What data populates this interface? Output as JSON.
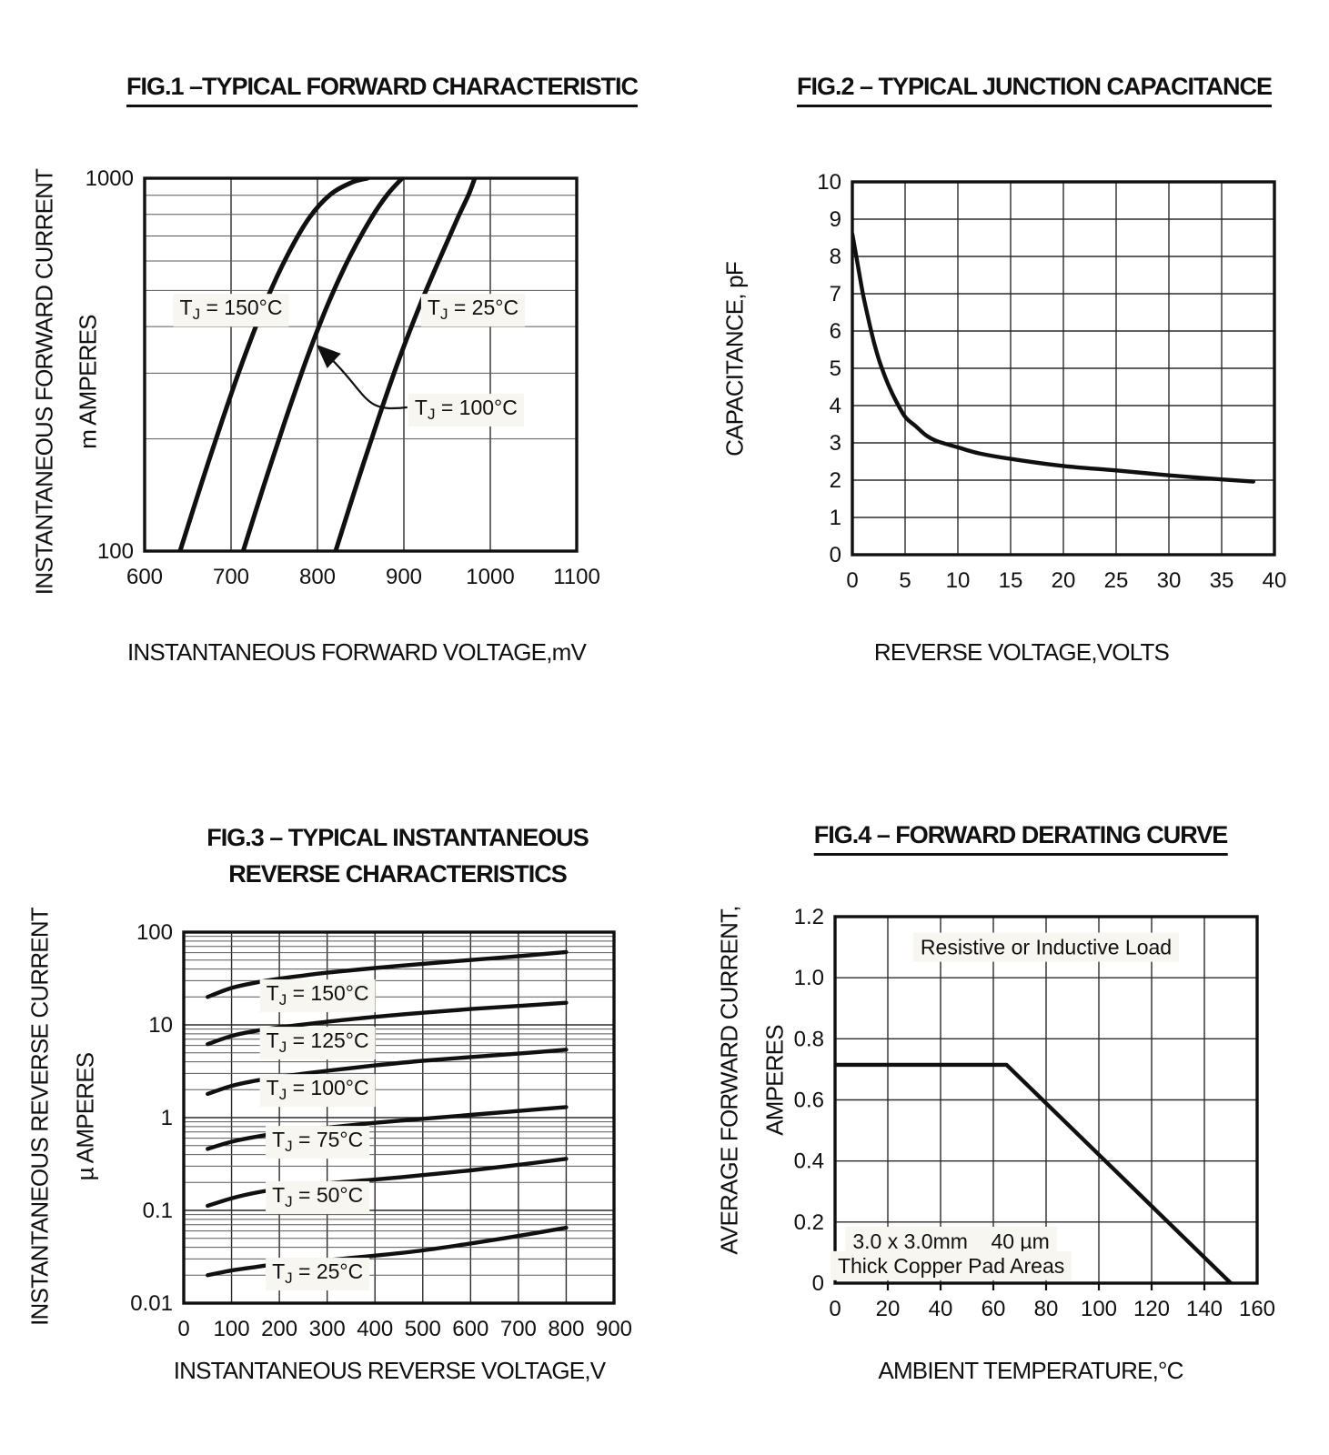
{
  "page": {
    "background": "#ffffff",
    "ink": "#101010",
    "grid_color": "#2b2b2b",
    "minor_grid_color": "#585858",
    "label_box_color": "#f7f6f0"
  },
  "chart_data": [
    {
      "type": "line",
      "title": "FIG.1 –TYPICAL FORWARD CHARACTERISTIC",
      "xlabel": "INSTANTANEOUS FORWARD VOLTAGE,mV",
      "ylabel": "INSTANTANEOUS FORWARD CURRENT, m AMPERES",
      "ylabel_lines": [
        "INSTANTANEOUS FORWARD CURRENT",
        "m AMPERES"
      ],
      "xlim": [
        600,
        1100
      ],
      "ylim": [
        100,
        1000
      ],
      "yscale": "log",
      "grid": true,
      "legend": "none",
      "xticks": [
        600,
        700,
        800,
        900,
        1000,
        1100
      ],
      "xtick_labels": [
        "600",
        "700",
        "800",
        "900",
        "1000",
        "1100"
      ],
      "yticks": [
        100,
        1000
      ],
      "ytick_labels": [
        "100",
        "1000"
      ],
      "series": [
        {
          "name": "TJ = 150°C",
          "points": [
            [
              641,
              100
            ],
            [
              665,
              150
            ],
            [
              690,
              225
            ],
            [
              715,
              330
            ],
            [
              740,
              465
            ],
            [
              765,
              620
            ],
            [
              790,
              780
            ],
            [
              815,
              905
            ],
            [
              840,
              975
            ],
            [
              858,
              1000
            ]
          ]
        },
        {
          "name": "TJ = 100°C",
          "points": [
            [
              714,
              100
            ],
            [
              738,
              150
            ],
            [
              763,
              225
            ],
            [
              788,
              330
            ],
            [
              813,
              465
            ],
            [
              838,
              620
            ],
            [
              862,
              780
            ],
            [
              881,
              905
            ],
            [
              898,
              1000
            ]
          ]
        },
        {
          "name": "TJ = 25°C",
          "points": [
            [
              821,
              100
            ],
            [
              845,
              150
            ],
            [
              870,
              225
            ],
            [
              895,
              330
            ],
            [
              920,
              465
            ],
            [
              943,
              620
            ],
            [
              962,
              780
            ],
            [
              975,
              905
            ],
            [
              982,
              1000
            ]
          ]
        }
      ],
      "curve_labels": [
        {
          "pre": "T",
          "sub": "J",
          "post": " = 150°C",
          "x": 700,
          "y": 450
        },
        {
          "pre": "T",
          "sub": "J",
          "post": " = 25°C",
          "x": 980,
          "y": 450
        },
        {
          "pre": "T",
          "sub": "J",
          "post": " = 100°C",
          "x": 972,
          "y": 243
        }
      ],
      "arrow": {
        "from": [
          904,
          243
        ],
        "to": [
          798,
          360
        ]
      }
    },
    {
      "type": "line",
      "title": "FIG.2 – TYPICAL JUNCTION CAPACITANCE",
      "xlabel": "REVERSE VOLTAGE,VOLTS",
      "ylabel": "CAPACITANCE, pF",
      "ylabel_lines": [
        "CAPACITANCE, pF"
      ],
      "xlim": [
        0,
        40
      ],
      "ylim": [
        0,
        10
      ],
      "yscale": "linear",
      "grid": true,
      "legend": "none",
      "xticks": [
        0,
        5,
        10,
        15,
        20,
        25,
        30,
        35,
        40
      ],
      "xtick_labels": [
        "0",
        "5",
        "10",
        "15",
        "20",
        "25",
        "30",
        "35",
        "40"
      ],
      "yticks": [
        0,
        1,
        2,
        3,
        4,
        5,
        6,
        7,
        8,
        9,
        10
      ],
      "ytick_labels": [
        "0",
        "1",
        "2",
        "3",
        "4",
        "5",
        "6",
        "7",
        "8",
        "9",
        "10"
      ],
      "series": [
        {
          "name": "junction capacitance",
          "points": [
            [
              0,
              8.6
            ],
            [
              0.5,
              7.8
            ],
            [
              1,
              7.0
            ],
            [
              1.5,
              6.35
            ],
            [
              2,
              5.75
            ],
            [
              2.5,
              5.25
            ],
            [
              3,
              4.85
            ],
            [
              3.5,
              4.5
            ],
            [
              4,
              4.2
            ],
            [
              5,
              3.7
            ],
            [
              6,
              3.45
            ],
            [
              7,
              3.2
            ],
            [
              8,
              3.05
            ],
            [
              10,
              2.88
            ],
            [
              12,
              2.72
            ],
            [
              15,
              2.57
            ],
            [
              20,
              2.38
            ],
            [
              25,
              2.26
            ],
            [
              30,
              2.13
            ],
            [
              35,
              2.02
            ],
            [
              38,
              1.96
            ]
          ]
        }
      ]
    },
    {
      "type": "line",
      "title": "FIG.3 – TYPICAL INSTANTANEOUS REVERSE CHARACTERISTICS",
      "title_lines": [
        "FIG.3 – TYPICAL INSTANTANEOUS",
        "REVERSE CHARACTERISTICS"
      ],
      "xlabel": "INSTANTANEOUS REVERSE VOLTAGE,V",
      "ylabel": "INSTANTANEOUS REVERSE CURRENT, µ AMPERES",
      "ylabel_lines": [
        "INSTANTANEOUS REVERSE CURRENT",
        "µ AMPERES"
      ],
      "xlim": [
        0,
        900
      ],
      "ylim": [
        0.01,
        100
      ],
      "yscale": "log",
      "grid": true,
      "legend": "none",
      "xticks": [
        0,
        100,
        200,
        300,
        400,
        500,
        600,
        700,
        800,
        900
      ],
      "xtick_labels": [
        "0",
        "100",
        "200",
        "300",
        "400",
        "500",
        "600",
        "700",
        "800",
        "900"
      ],
      "yticks": [
        0.01,
        0.1,
        1,
        10,
        100
      ],
      "ytick_labels": [
        "0.01",
        "0.1",
        "1",
        "10",
        "100"
      ],
      "series": [
        {
          "name": "TJ = 150°C",
          "points": [
            [
              50,
              20
            ],
            [
              100,
              25
            ],
            [
              150,
              28.5
            ],
            [
              200,
              31.5
            ],
            [
              250,
              34
            ],
            [
              300,
              36.5
            ],
            [
              400,
              41
            ],
            [
              500,
              45.5
            ],
            [
              600,
              50
            ],
            [
              700,
              55
            ],
            [
              800,
              61
            ]
          ]
        },
        {
          "name": "TJ = 125°C",
          "points": [
            [
              50,
              6.2
            ],
            [
              100,
              7.6
            ],
            [
              150,
              8.6
            ],
            [
              200,
              9.4
            ],
            [
              300,
              10.8
            ],
            [
              400,
              12.2
            ],
            [
              500,
              13.5
            ],
            [
              600,
              14.8
            ],
            [
              700,
              16
            ],
            [
              800,
              17.3
            ]
          ]
        },
        {
          "name": "TJ = 100°C",
          "points": [
            [
              50,
              1.8
            ],
            [
              100,
              2.2
            ],
            [
              150,
              2.5
            ],
            [
              200,
              2.75
            ],
            [
              300,
              3.2
            ],
            [
              400,
              3.65
            ],
            [
              500,
              4.1
            ],
            [
              600,
              4.5
            ],
            [
              700,
              4.9
            ],
            [
              800,
              5.4
            ]
          ]
        },
        {
          "name": "TJ = 75°C",
          "points": [
            [
              50,
              0.46
            ],
            [
              100,
              0.55
            ],
            [
              150,
              0.62
            ],
            [
              200,
              0.68
            ],
            [
              300,
              0.78
            ],
            [
              400,
              0.88
            ],
            [
              500,
              0.97
            ],
            [
              600,
              1.07
            ],
            [
              700,
              1.18
            ],
            [
              800,
              1.3
            ]
          ]
        },
        {
          "name": "TJ = 50°C",
          "points": [
            [
              50,
              0.112
            ],
            [
              100,
              0.135
            ],
            [
              150,
              0.155
            ],
            [
              200,
              0.17
            ],
            [
              300,
              0.195
            ],
            [
              400,
              0.215
            ],
            [
              500,
              0.24
            ],
            [
              600,
              0.27
            ],
            [
              700,
              0.31
            ],
            [
              800,
              0.36
            ]
          ]
        },
        {
          "name": "TJ = 25°C",
          "points": [
            [
              50,
              0.02
            ],
            [
              100,
              0.0225
            ],
            [
              150,
              0.0245
            ],
            [
              200,
              0.0265
            ],
            [
              300,
              0.029
            ],
            [
              400,
              0.0325
            ],
            [
              500,
              0.037
            ],
            [
              600,
              0.044
            ],
            [
              700,
              0.053
            ],
            [
              800,
              0.065
            ]
          ]
        }
      ],
      "curve_labels": [
        {
          "pre": "T",
          "sub": "J",
          "post": " = 150°C",
          "x": 280,
          "y": 22
        },
        {
          "pre": "T",
          "sub": "J",
          "post": " = 125°C",
          "x": 280,
          "y": 6.8
        },
        {
          "pre": "T",
          "sub": "J",
          "post": " = 100°C",
          "x": 280,
          "y": 2.1
        },
        {
          "pre": "T",
          "sub": "J",
          "post": " = 75°C",
          "x": 280,
          "y": 0.58
        },
        {
          "pre": "T",
          "sub": "J",
          "post": " = 50°C",
          "x": 280,
          "y": 0.147
        },
        {
          "pre": "T",
          "sub": "J",
          "post": " = 25°C",
          "x": 280,
          "y": 0.022
        }
      ]
    },
    {
      "type": "line",
      "title": "FIG.4 – FORWARD DERATING CURVE",
      "xlabel": "AMBIENT TEMPERATURE,°C",
      "ylabel": "AVERAGE FORWARD CURRENT, AMPERES",
      "ylabel_lines": [
        "AVERAGE FORWARD CURRENT,",
        "AMPERES"
      ],
      "xlim": [
        0,
        160
      ],
      "ylim": [
        0,
        1.2
      ],
      "yscale": "linear",
      "grid": true,
      "legend": "none",
      "xticks": [
        0,
        20,
        40,
        60,
        80,
        100,
        120,
        140,
        160
      ],
      "xtick_labels": [
        "0",
        "20",
        "40",
        "60",
        "80",
        "100",
        "120",
        "140",
        "160"
      ],
      "yticks": [
        0,
        0.2,
        0.4,
        0.6,
        0.8,
        1.0,
        1.2
      ],
      "ytick_labels": [
        "0",
        "0.2",
        "0.4",
        "0.6",
        "0.8",
        "1.0",
        "1.2"
      ],
      "outward_xticks": true,
      "series": [
        {
          "name": "forward derating",
          "smooth": false,
          "points": [
            [
              0,
              0.715
            ],
            [
              65,
              0.715
            ],
            [
              150,
              0
            ]
          ]
        }
      ],
      "annotations": [
        {
          "text": "Resistive or Inductive Load",
          "x": 80,
          "y": 1.1
        },
        {
          "text": "3.0 x 3.0mm    40 µm",
          "x": 44,
          "y": 0.137
        },
        {
          "text": "Thick Copper Pad Areas",
          "x": 44,
          "y": 0.057
        }
      ]
    }
  ]
}
